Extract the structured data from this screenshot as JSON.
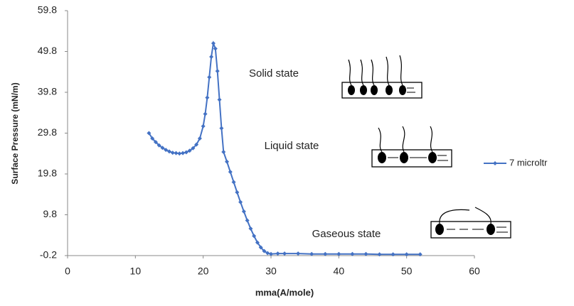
{
  "chart_data": {
    "type": "line",
    "x_label": "mma(A/mole)",
    "y_label": "Surface Pressure (mN/m)",
    "x": [
      12,
      12.5,
      13,
      13.5,
      14,
      14.5,
      15,
      15.5,
      16,
      16.5,
      17,
      17.5,
      18,
      18.5,
      19,
      19.5,
      20,
      20.3,
      20.6,
      20.9,
      21.2,
      21.5,
      21.8,
      22.1,
      22.4,
      22.7,
      23,
      23.5,
      24,
      24.5,
      25,
      25.5,
      26,
      26.5,
      27,
      27.5,
      28,
      28.5,
      29,
      29.5,
      30,
      31,
      32,
      34,
      36,
      38,
      40,
      42,
      44,
      46,
      48,
      50,
      52
    ],
    "series": [
      {
        "name": "7 microltr",
        "color": "#4472c4",
        "values": [
          29.8,
          28.5,
          27.6,
          26.8,
          26.2,
          25.7,
          25.3,
          25.0,
          24.9,
          24.8,
          24.9,
          25.1,
          25.5,
          26.1,
          27.0,
          28.5,
          31.5,
          34.5,
          38.5,
          43.5,
          48.5,
          51.8,
          50.5,
          45,
          38,
          31,
          25.2,
          22.8,
          20.3,
          17.8,
          15.3,
          12.9,
          10.6,
          8.4,
          6.4,
          4.6,
          3.0,
          1.8,
          0.9,
          0.4,
          0.2,
          0.3,
          0.3,
          0.3,
          0.2,
          0.2,
          0.2,
          0.2,
          0.2,
          0.1,
          0.1,
          0.1,
          0.1
        ]
      }
    ],
    "xlim": [
      0,
      60
    ],
    "xticks": [
      0,
      10,
      20,
      30,
      40,
      50,
      60
    ],
    "ylim": [
      -0.2,
      59.8
    ],
    "yticks": [
      -0.2,
      9.8,
      19.8,
      29.8,
      39.8,
      49.8,
      59.8
    ],
    "grid": false,
    "legend": "right",
    "annotations": [
      "Solid state",
      "Liquid state",
      "Gaseous state"
    ]
  }
}
